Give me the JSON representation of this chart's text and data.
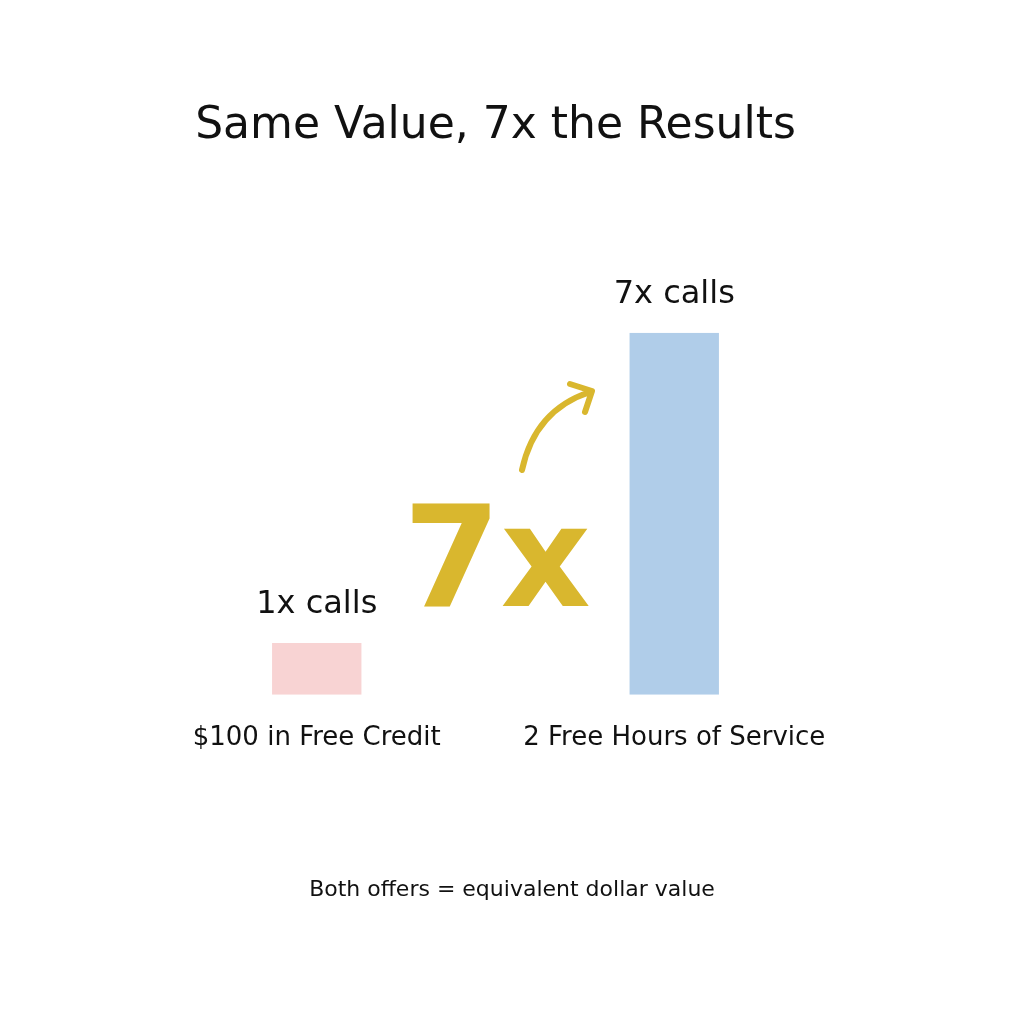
{
  "chart_data": {
    "type": "bar",
    "title": "Same Value, 7x the Results",
    "categories": [
      "$100 in Free Credit",
      "2 Free Hours of Service"
    ],
    "values": [
      1,
      7
    ],
    "tick_labels": "x",
    "colors": [
      "#f8d3d3",
      "#b0cde9"
    ],
    "value_labels": [
      "1x calls",
      "7x calls"
    ],
    "annotations": [
      "7x",
      "Both offers = equivalent dollar value"
    ]
  }
}
